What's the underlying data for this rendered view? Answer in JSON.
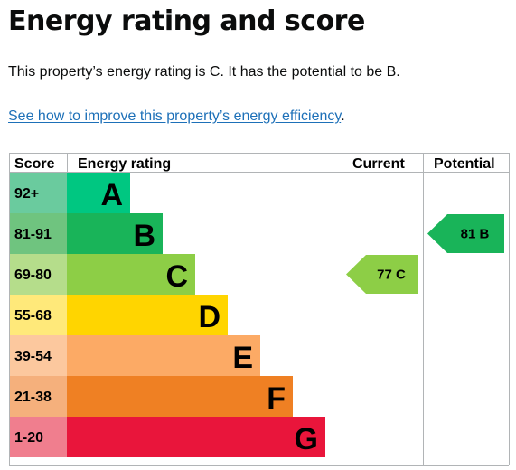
{
  "page": {
    "title": "Energy rating and score",
    "summary": "This property’s energy rating is C. It has the potential to be B.",
    "improve_link": "See how to improve this property’s energy efficiency",
    "improve_link_suffix": "."
  },
  "chart": {
    "headers": {
      "score": "Score",
      "rating": "Energy rating",
      "current": "Current",
      "potential": "Potential"
    },
    "bands": [
      {
        "letter": "A",
        "range": "92+",
        "score_color": "#6acb9e",
        "bar_color": "#00c781",
        "text_color": "#000000"
      },
      {
        "letter": "B",
        "range": "81-91",
        "score_color": "#6fc47f",
        "bar_color": "#19b459",
        "text_color": "#000000"
      },
      {
        "letter": "C",
        "range": "69-80",
        "score_color": "#b5dd8b",
        "bar_color": "#8dce46",
        "text_color": "#000000"
      },
      {
        "letter": "D",
        "range": "55-68",
        "score_color": "#ffe97a",
        "bar_color": "#ffd500",
        "text_color": "#000000"
      },
      {
        "letter": "E",
        "range": "39-54",
        "score_color": "#fcc89e",
        "bar_color": "#fcaa65",
        "text_color": "#000000"
      },
      {
        "letter": "F",
        "range": "21-38",
        "score_color": "#f5b07c",
        "bar_color": "#ef8023",
        "text_color": "#000000"
      },
      {
        "letter": "G",
        "range": "1-20",
        "score_color": "#f07e8e",
        "bar_color": "#e9153b",
        "text_color": "#000000"
      }
    ],
    "current": {
      "label": "77 C",
      "value": 77,
      "band": "C",
      "color": "#8dce46"
    },
    "potential": {
      "label": "81 B",
      "value": 81,
      "band": "B",
      "color": "#19b459"
    },
    "grid_color": "#b1b4b6"
  }
}
